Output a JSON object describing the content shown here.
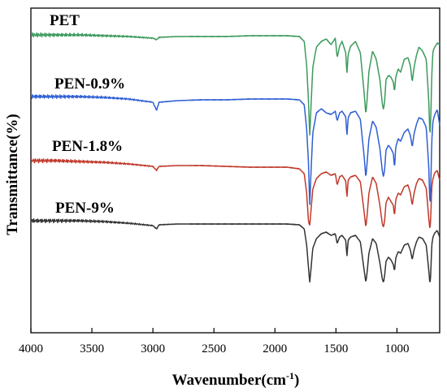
{
  "chart_data": {
    "type": "line",
    "title": "",
    "xlabel": "Wavenumber(cm",
    "xlabel_sup": "-1",
    "xlabel_close": ")",
    "ylabel": "Transmittance(%)",
    "xlim": [
      4000,
      650
    ],
    "x_reversed": true,
    "y_ticks_shown": false,
    "grid": false,
    "x_ticks": [
      4000,
      3500,
      3000,
      2500,
      2000,
      1500,
      1000
    ],
    "x_tick_labels": [
      "4000",
      "3500",
      "3000",
      "2500",
      "2000",
      "1500",
      "1000"
    ],
    "series": [
      {
        "name": "PET",
        "color": "#3c9a5c",
        "offset": 43,
        "x": [
          4000,
          3800,
          3600,
          3400,
          3200,
          3000,
          2970,
          2950,
          2800,
          2600,
          2400,
          2200,
          2000,
          1900,
          1800,
          1760,
          1740,
          1725,
          1715,
          1705,
          1690,
          1660,
          1620,
          1580,
          1540,
          1505,
          1490,
          1470,
          1450,
          1420,
          1410,
          1400,
          1380,
          1340,
          1300,
          1270,
          1255,
          1245,
          1230,
          1200,
          1170,
          1140,
          1120,
          1110,
          1100,
          1090,
          1070,
          1050,
          1030,
          1020,
          1010,
          990,
          970,
          940,
          910,
          890,
          875,
          860,
          840,
          820,
          790,
          760,
          740,
          730,
          725,
          720,
          715,
          705,
          690,
          670,
          650
        ],
        "y": [
          0,
          0,
          0,
          1,
          2,
          4,
          6,
          3,
          2,
          2,
          2,
          1,
          1,
          1,
          2,
          8,
          38,
          82,
          125,
          90,
          40,
          15,
          8,
          5,
          12,
          4,
          28,
          14,
          8,
          22,
          48,
          24,
          14,
          8,
          22,
          70,
          98,
          80,
          45,
          20,
          30,
          55,
          85,
          92,
          80,
          55,
          50,
          52,
          58,
          70,
          52,
          42,
          46,
          30,
          28,
          38,
          58,
          40,
          25,
          15,
          20,
          30,
          80,
          125,
          110,
          85,
          50,
          20,
          15,
          10,
          12
        ]
      },
      {
        "name": "PEN-0.9%",
        "color": "#2e5fd4",
        "offset": 119,
        "x": [
          4000,
          3800,
          3600,
          3400,
          3200,
          3000,
          2970,
          2950,
          2800,
          2600,
          2400,
          2200,
          2000,
          1900,
          1800,
          1760,
          1740,
          1725,
          1715,
          1705,
          1690,
          1660,
          1620,
          1580,
          1540,
          1505,
          1490,
          1470,
          1450,
          1420,
          1410,
          1400,
          1380,
          1340,
          1300,
          1270,
          1255,
          1245,
          1230,
          1200,
          1170,
          1140,
          1120,
          1110,
          1100,
          1090,
          1070,
          1050,
          1030,
          1020,
          1010,
          990,
          970,
          940,
          910,
          890,
          875,
          860,
          840,
          820,
          790,
          760,
          740,
          730,
          725,
          720,
          715,
          705,
          690,
          670,
          650
        ],
        "y": [
          0,
          0,
          0,
          1,
          3,
          7,
          17,
          7,
          5,
          4,
          4,
          3,
          3,
          3,
          4,
          10,
          40,
          82,
          135,
          95,
          45,
          20,
          15,
          20,
          22,
          18,
          30,
          20,
          18,
          25,
          48,
          26,
          20,
          18,
          28,
          72,
          100,
          82,
          52,
          30,
          38,
          64,
          92,
          99,
          88,
          66,
          60,
          64,
          70,
          88,
          62,
          52,
          55,
          44,
          40,
          48,
          62,
          46,
          34,
          26,
          28,
          38,
          85,
          135,
          118,
          90,
          55,
          30,
          22,
          16,
          35
        ]
      },
      {
        "name": "PEN-1.8%",
        "color": "#c0392b",
        "offset": 198,
        "x": [
          4000,
          3800,
          3600,
          3400,
          3200,
          3000,
          2970,
          2950,
          2800,
          2600,
          2400,
          2200,
          2000,
          1900,
          1800,
          1760,
          1740,
          1725,
          1715,
          1705,
          1690,
          1660,
          1620,
          1580,
          1540,
          1505,
          1490,
          1470,
          1450,
          1420,
          1410,
          1400,
          1380,
          1340,
          1300,
          1270,
          1255,
          1245,
          1230,
          1200,
          1170,
          1140,
          1120,
          1110,
          1100,
          1090,
          1070,
          1050,
          1030,
          1020,
          1010,
          990,
          970,
          940,
          910,
          890,
          875,
          860,
          840,
          820,
          790,
          760,
          740,
          730,
          725,
          720,
          715,
          705,
          690,
          670,
          650
        ],
        "y": [
          0,
          0,
          1,
          2,
          4,
          7,
          12,
          7,
          6,
          6,
          7,
          8,
          8,
          8,
          10,
          16,
          40,
          75,
          80,
          62,
          35,
          22,
          16,
          14,
          18,
          16,
          30,
          20,
          18,
          25,
          45,
          24,
          20,
          18,
          26,
          62,
          82,
          68,
          40,
          20,
          28,
          55,
          78,
          82,
          72,
          52,
          45,
          50,
          55,
          68,
          48,
          40,
          42,
          32,
          30,
          40,
          55,
          40,
          28,
          22,
          24,
          34,
          70,
          85,
          75,
          56,
          32,
          22,
          15,
          12,
          24
        ]
      },
      {
        "name": "PEN-9%",
        "color": "#333333",
        "offset": 272,
        "x": [
          4000,
          3800,
          3600,
          3400,
          3200,
          3000,
          2970,
          2950,
          2800,
          2600,
          2400,
          2200,
          2000,
          1900,
          1800,
          1760,
          1740,
          1725,
          1715,
          1705,
          1690,
          1660,
          1620,
          1580,
          1540,
          1505,
          1490,
          1470,
          1450,
          1420,
          1410,
          1400,
          1380,
          1340,
          1300,
          1270,
          1255,
          1245,
          1230,
          1200,
          1170,
          1140,
          1120,
          1110,
          1100,
          1090,
          1070,
          1050,
          1030,
          1020,
          1010,
          990,
          970,
          940,
          910,
          890,
          875,
          860,
          840,
          820,
          790,
          760,
          740,
          730,
          725,
          720,
          715,
          705,
          690,
          670,
          650
        ],
        "y": [
          0,
          0,
          0,
          1,
          3,
          6,
          10,
          5,
          4,
          4,
          4,
          4,
          4,
          4,
          5,
          10,
          30,
          58,
          76,
          60,
          34,
          22,
          16,
          14,
          18,
          16,
          28,
          20,
          18,
          24,
          44,
          24,
          20,
          18,
          26,
          60,
          76,
          64,
          40,
          22,
          28,
          52,
          72,
          76,
          66,
          50,
          45,
          48,
          54,
          62,
          46,
          38,
          40,
          30,
          28,
          36,
          48,
          36,
          26,
          20,
          22,
          30,
          60,
          78,
          70,
          52,
          30,
          20,
          15,
          12,
          20
        ]
      }
    ]
  }
}
